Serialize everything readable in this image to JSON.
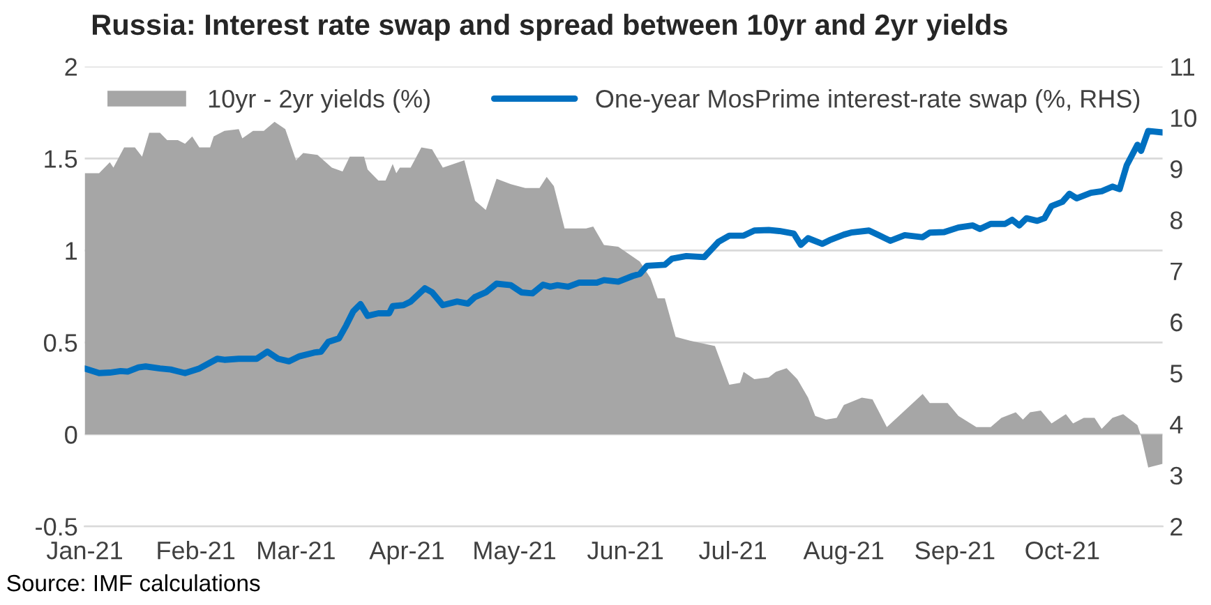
{
  "chart_data": {
    "type": "area",
    "title": "Russia: Interest rate swap and spread between 10yr and 2yr yields",
    "annotations": [
      "Source: IMF calculations"
    ],
    "xlim": [
      "2021-01-01",
      "2021-10-29"
    ],
    "xticks": [
      {
        "value": "2021-01-01",
        "label": "Jan-21"
      },
      {
        "value": "2021-02-01",
        "label": "Feb-21"
      },
      {
        "value": "2021-03-01",
        "label": "Mar-21"
      },
      {
        "value": "2021-04-01",
        "label": "Apr-21"
      },
      {
        "value": "2021-05-01",
        "label": "May-21"
      },
      {
        "value": "2021-06-01",
        "label": "Jun-21"
      },
      {
        "value": "2021-07-01",
        "label": "Jul-21"
      },
      {
        "value": "2021-08-01",
        "label": "Aug-21"
      },
      {
        "value": "2021-09-01",
        "label": "Sep-21"
      },
      {
        "value": "2021-10-01",
        "label": "Oct-21"
      }
    ],
    "ylim": [
      -0.5,
      2
    ],
    "yticks": [
      -0.5,
      0,
      0.5,
      1,
      1.5,
      2
    ],
    "y2lim": [
      2,
      11
    ],
    "y2ticks": [
      2,
      3,
      4,
      5,
      6,
      7,
      8,
      9,
      10,
      11
    ],
    "grid": "y",
    "legend": "top",
    "series": [
      {
        "name": "10yr - 2yr yields (%)",
        "color": "#a6a6a6",
        "x": [
          "2021-01-01",
          "2021-01-05",
          "2021-01-08",
          "2021-01-09",
          "2021-01-12",
          "2021-01-15",
          "2021-01-17",
          "2021-01-19",
          "2021-01-22",
          "2021-01-24",
          "2021-01-27",
          "2021-01-29",
          "2021-01-31",
          "2021-02-02",
          "2021-02-05",
          "2021-02-06",
          "2021-02-09",
          "2021-02-13",
          "2021-02-14",
          "2021-02-17",
          "2021-02-20",
          "2021-02-23",
          "2021-02-26",
          "2021-03-01",
          "2021-03-03",
          "2021-03-07",
          "2021-03-11",
          "2021-03-14",
          "2021-03-16",
          "2021-03-20",
          "2021-03-21",
          "2021-03-24",
          "2021-03-26",
          "2021-03-28",
          "2021-03-29",
          "2021-03-30",
          "2021-04-02",
          "2021-04-05",
          "2021-04-08",
          "2021-04-11",
          "2021-04-14",
          "2021-04-17",
          "2021-04-20",
          "2021-04-23",
          "2021-04-26",
          "2021-04-30",
          "2021-05-04",
          "2021-05-08",
          "2021-05-10",
          "2021-05-12",
          "2021-05-15",
          "2021-05-21",
          "2021-05-23",
          "2021-05-26",
          "2021-05-30",
          "2021-06-05",
          "2021-06-08",
          "2021-06-10",
          "2021-06-12",
          "2021-06-15",
          "2021-06-19",
          "2021-06-26",
          "2021-06-30",
          "2021-07-03",
          "2021-07-04",
          "2021-07-07",
          "2021-07-11",
          "2021-07-13",
          "2021-07-16",
          "2021-07-19",
          "2021-07-22",
          "2021-07-24",
          "2021-07-27",
          "2021-07-30",
          "2021-08-01",
          "2021-08-06",
          "2021-08-09",
          "2021-08-13",
          "2021-08-18",
          "2021-08-23",
          "2021-08-25",
          "2021-08-30",
          "2021-09-02",
          "2021-09-07",
          "2021-09-11",
          "2021-09-14",
          "2021-09-18",
          "2021-09-20",
          "2021-09-22",
          "2021-09-25",
          "2021-09-28",
          "2021-10-02",
          "2021-10-04",
          "2021-10-07",
          "2021-10-10",
          "2021-10-12",
          "2021-10-15",
          "2021-10-18",
          "2021-10-22",
          "2021-10-23",
          "2021-10-25",
          "2021-10-29"
        ],
        "values": [
          1.42,
          1.42,
          1.48,
          1.45,
          1.56,
          1.56,
          1.51,
          1.64,
          1.64,
          1.6,
          1.6,
          1.58,
          1.62,
          1.56,
          1.56,
          1.62,
          1.65,
          1.66,
          1.61,
          1.65,
          1.65,
          1.7,
          1.66,
          1.49,
          1.53,
          1.52,
          1.45,
          1.43,
          1.51,
          1.51,
          1.44,
          1.38,
          1.38,
          1.47,
          1.42,
          1.45,
          1.45,
          1.56,
          1.55,
          1.45,
          1.47,
          1.49,
          1.27,
          1.22,
          1.39,
          1.36,
          1.34,
          1.34,
          1.4,
          1.35,
          1.12,
          1.12,
          1.13,
          1.03,
          1.02,
          0.94,
          0.85,
          0.74,
          0.74,
          0.53,
          0.51,
          0.48,
          0.27,
          0.28,
          0.34,
          0.3,
          0.31,
          0.34,
          0.36,
          0.3,
          0.2,
          0.1,
          0.08,
          0.09,
          0.16,
          0.2,
          0.19,
          0.04,
          0.13,
          0.22,
          0.17,
          0.17,
          0.1,
          0.04,
          0.04,
          0.09,
          0.12,
          0.08,
          0.12,
          0.13,
          0.06,
          0.11,
          0.06,
          0.09,
          0.09,
          0.03,
          0.09,
          0.11,
          0.05,
          -0.01,
          -0.18,
          -0.16
        ]
      },
      {
        "type": "line",
        "axis": "y2",
        "name": "One-year MosPrime interest-rate swap (%, RHS)",
        "color": "#0070c0",
        "x": [
          "2021-01-01",
          "2021-01-05",
          "2021-01-08",
          "2021-01-11",
          "2021-01-13",
          "2021-01-16",
          "2021-01-18",
          "2021-01-22",
          "2021-01-25",
          "2021-01-29",
          "2021-02-02",
          "2021-02-07",
          "2021-02-09",
          "2021-02-13",
          "2021-02-18",
          "2021-02-21",
          "2021-02-24",
          "2021-02-27",
          "2021-03-02",
          "2021-03-06",
          "2021-03-08",
          "2021-03-10",
          "2021-03-13",
          "2021-03-15",
          "2021-03-17",
          "2021-03-19",
          "2021-03-21",
          "2021-03-24",
          "2021-03-27",
          "2021-03-28",
          "2021-03-31",
          "2021-04-02",
          "2021-04-06",
          "2021-04-08",
          "2021-04-11",
          "2021-04-15",
          "2021-04-18",
          "2021-04-20",
          "2021-04-23",
          "2021-04-26",
          "2021-04-30",
          "2021-05-03",
          "2021-05-06",
          "2021-05-09",
          "2021-05-11",
          "2021-05-13",
          "2021-05-16",
          "2021-05-19",
          "2021-05-24",
          "2021-05-26",
          "2021-05-30",
          "2021-06-03",
          "2021-06-05",
          "2021-06-07",
          "2021-06-12",
          "2021-06-14",
          "2021-06-18",
          "2021-06-23",
          "2021-06-27",
          "2021-06-30",
          "2021-07-04",
          "2021-07-07",
          "2021-07-11",
          "2021-07-14",
          "2021-07-18",
          "2021-07-20",
          "2021-07-22",
          "2021-07-26",
          "2021-07-28",
          "2021-08-01",
          "2021-08-03",
          "2021-08-08",
          "2021-08-11",
          "2021-08-14",
          "2021-08-18",
          "2021-08-23",
          "2021-08-25",
          "2021-08-29",
          "2021-09-02",
          "2021-09-06",
          "2021-09-08",
          "2021-09-11",
          "2021-09-15",
          "2021-09-17",
          "2021-09-19",
          "2021-09-21",
          "2021-09-24",
          "2021-09-26",
          "2021-09-28",
          "2021-10-01",
          "2021-10-03",
          "2021-10-05",
          "2021-10-09",
          "2021-10-12",
          "2021-10-15",
          "2021-10-17",
          "2021-10-19",
          "2021-10-22",
          "2021-10-23",
          "2021-10-25",
          "2021-10-29"
        ],
        "values": [
          5.09,
          5.0,
          5.01,
          5.04,
          5.03,
          5.11,
          5.13,
          5.09,
          5.07,
          5.0,
          5.09,
          5.28,
          5.26,
          5.28,
          5.28,
          5.42,
          5.28,
          5.23,
          5.33,
          5.4,
          5.42,
          5.61,
          5.68,
          5.93,
          6.21,
          6.35,
          6.12,
          6.17,
          6.17,
          6.31,
          6.33,
          6.4,
          6.66,
          6.58,
          6.33,
          6.4,
          6.36,
          6.49,
          6.58,
          6.75,
          6.72,
          6.58,
          6.56,
          6.73,
          6.69,
          6.72,
          6.69,
          6.77,
          6.77,
          6.82,
          6.79,
          6.9,
          6.94,
          7.1,
          7.12,
          7.24,
          7.29,
          7.27,
          7.57,
          7.69,
          7.69,
          7.79,
          7.8,
          7.78,
          7.73,
          7.51,
          7.64,
          7.53,
          7.6,
          7.71,
          7.75,
          7.79,
          7.69,
          7.59,
          7.7,
          7.66,
          7.75,
          7.76,
          7.85,
          7.89,
          7.82,
          7.92,
          7.92,
          8.0,
          7.89,
          8.03,
          7.98,
          8.03,
          8.27,
          8.35,
          8.51,
          8.42,
          8.53,
          8.56,
          8.65,
          8.6,
          9.07,
          9.47,
          9.35,
          9.74,
          9.71
        ]
      }
    ]
  }
}
